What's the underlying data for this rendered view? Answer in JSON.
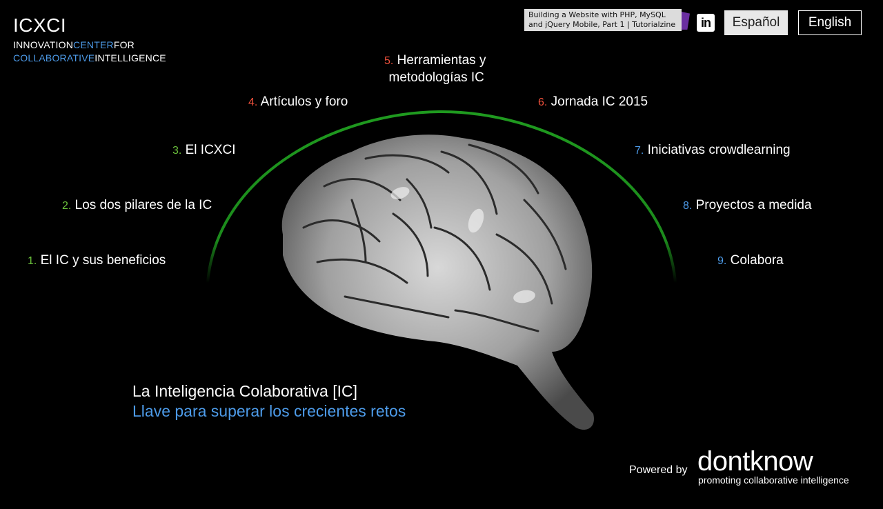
{
  "logo": {
    "title": "ICXCI",
    "line1": [
      "INNOVATION",
      "CENTER",
      "FOR"
    ],
    "line2": [
      "COLLABORATIVE",
      "INTELLIGENCE"
    ]
  },
  "tooltip": {
    "text": "Building a Website with PHP, MySQL and jQuery Mobile, Part 1 | Tutorialzine"
  },
  "social": {
    "linkedin_icon": "linkedin-icon",
    "linkedin_glyph": "in"
  },
  "languages": {
    "spanish": "Español",
    "english": "English"
  },
  "menu": [
    {
      "num": "1.",
      "label": "El IC y sus beneficios",
      "color": "#6bc23c"
    },
    {
      "num": "2.",
      "label": "Los dos pilares de la IC",
      "color": "#6bc23c"
    },
    {
      "num": "3.",
      "label": "El ICXCI",
      "color": "#6bc23c"
    },
    {
      "num": "4.",
      "label": "Artículos y foro",
      "color": "#f0513c"
    },
    {
      "num": "5.",
      "label": "Herramientas y",
      "label2": "metodologías IC",
      "color": "#f0513c"
    },
    {
      "num": "6.",
      "label": "Jornada IC 2015",
      "color": "#f0513c"
    },
    {
      "num": "7.",
      "label": "Iniciativas crowdlearning",
      "color": "#4d9be9"
    },
    {
      "num": "8.",
      "label": "Proyectos a medida",
      "color": "#4d9be9"
    },
    {
      "num": "9.",
      "label": "Colabora",
      "color": "#4d9be9"
    }
  ],
  "tagline": {
    "line1": "La Inteligencia Colaborativa [IC]",
    "line2": "Llave para superar los crecientes retos"
  },
  "footer": {
    "powered_by": "Powered by",
    "brand": "dontknow",
    "brand_tagline": "promoting collaborative intelligence"
  },
  "colors": {
    "arc": "#1f9a1f",
    "accent_blue": "#4d9be9",
    "accent_green": "#6bc23c",
    "accent_red": "#f0513c"
  }
}
